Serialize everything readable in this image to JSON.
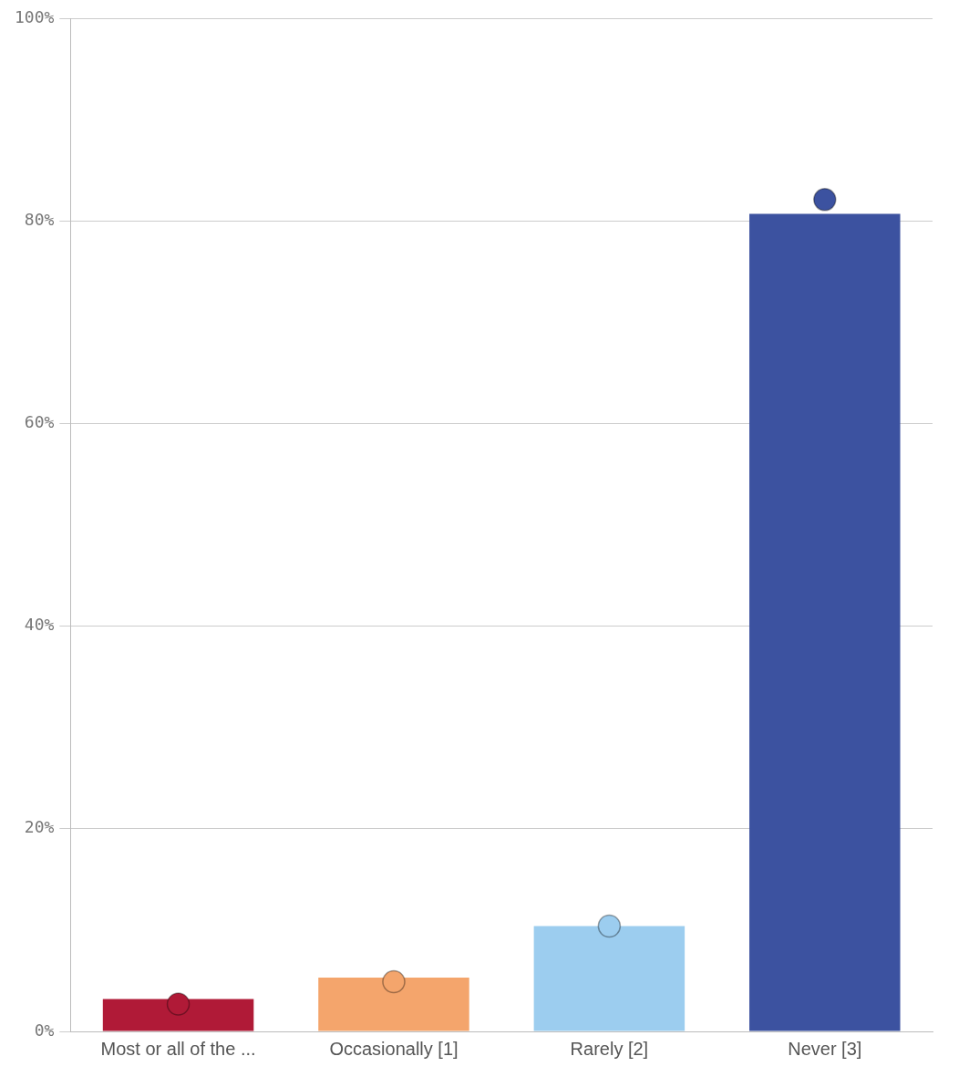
{
  "chart_data": {
    "type": "bar",
    "categories": [
      "Most or all of the ...",
      "Occasionally [1]",
      "Rarely [2]",
      "Never [3]"
    ],
    "series": [
      {
        "values": [
          3.2,
          5.3,
          10.4,
          80.7
        ],
        "colors": [
          "#b01a37",
          "#f4a56c",
          "#9ccdef",
          "#3c52a0"
        ]
      },
      {
        "type": "scatter",
        "x": [
          "Most or all of the ...",
          "Occasionally [1]",
          "Rarely [2]",
          "Never [3]"
        ],
        "values": [
          2.7,
          4.9,
          10.4,
          82.1
        ],
        "colors": [
          "#b01a37",
          "#f4a56c",
          "#9ccdef",
          "#3c52a0"
        ]
      }
    ],
    "ylim": [
      0,
      100
    ],
    "yticks": [
      {
        "value": 0,
        "label": "0%"
      },
      {
        "value": 20,
        "label": "20%"
      },
      {
        "value": 40,
        "label": "40%"
      },
      {
        "value": 60,
        "label": "60%"
      },
      {
        "value": 80,
        "label": "80%"
      },
      {
        "value": 100,
        "label": "100%"
      }
    ],
    "grid": "y",
    "legend": false,
    "marker": "circle"
  }
}
